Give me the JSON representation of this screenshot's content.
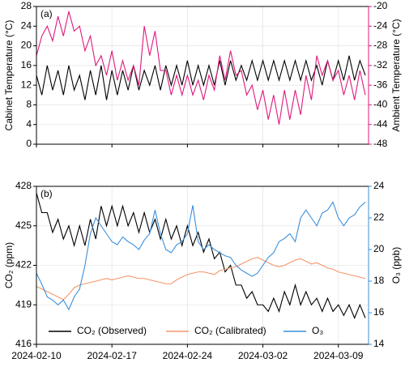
{
  "chart_data": [
    {
      "type": "line",
      "panel_label": "(a)",
      "ylabel": "Cabinet Temperature (°C)",
      "y2label": "Ambient Temperature (°C)",
      "x": [
        0,
        0.5,
        1,
        1.5,
        2,
        2.5,
        3,
        3.5,
        4,
        4.5,
        5,
        5.5,
        6,
        6.5,
        7,
        7.5,
        8,
        8.5,
        9,
        9.5,
        10,
        10.5,
        11,
        11.5,
        12,
        12.5,
        13,
        13.5,
        14,
        14.5,
        15,
        15.5,
        16,
        16.5,
        17,
        17.5,
        18,
        18.5,
        19,
        19.5,
        20,
        20.5,
        21,
        21.5,
        22,
        22.5,
        23,
        23.5,
        24,
        24.5,
        25,
        25.5,
        26,
        26.5,
        27,
        27.5,
        28,
        28.5,
        29,
        29.5,
        30,
        30.5
      ],
      "xlim": [
        0,
        30.8
      ],
      "xticks": [
        0,
        7,
        14,
        21,
        28
      ],
      "ylim": [
        0,
        28
      ],
      "yticks": [
        0,
        4,
        8,
        12,
        16,
        20,
        24,
        28
      ],
      "y2lim": [
        -48,
        -20
      ],
      "y2ticks": [
        -48,
        -44,
        -40,
        -36,
        -32,
        -28,
        -24,
        -20
      ],
      "y2color": "#e0197d",
      "grid": true,
      "series": [
        {
          "name": "Cabinet Temperature",
          "color": "#000000",
          "values": [
            14,
            10,
            16,
            11,
            15,
            10,
            16,
            11,
            14,
            9,
            15,
            10,
            16,
            9,
            15,
            10,
            15,
            11,
            16,
            11,
            15,
            12,
            16,
            11,
            16,
            12,
            16,
            12,
            17,
            12,
            16,
            12,
            16,
            12,
            17,
            12,
            17,
            13,
            16,
            13,
            17,
            13,
            17,
            13,
            17,
            13,
            17,
            13,
            17,
            13,
            17,
            13,
            16,
            12,
            17,
            13,
            17,
            13,
            18,
            13,
            17,
            14
          ]
        },
        {
          "name": "Ambient Temperature",
          "color": "#e0197d",
          "axis": "y2",
          "values": [
            -30,
            -26,
            -24,
            -27,
            -22,
            -26,
            -21,
            -25,
            -24,
            -29,
            -26,
            -32,
            -30,
            -34,
            -29,
            -35,
            -31,
            -35,
            -32,
            -36,
            -24,
            -30,
            -25,
            -33,
            -33,
            -38,
            -34,
            -38,
            -34,
            -38,
            -35,
            -39,
            -34,
            -37,
            -30,
            -35,
            -29,
            -34,
            -33,
            -38,
            -36,
            -41,
            -37,
            -43,
            -38,
            -44,
            -37,
            -43,
            -37,
            -42,
            -34,
            -39,
            -30,
            -34,
            -31,
            -35,
            -33,
            -38,
            -34,
            -39,
            -33,
            -38
          ]
        }
      ]
    },
    {
      "type": "line",
      "panel_label": "(b)",
      "ylabel": "CO₂ (ppm)",
      "y2label": "O₃ (ppb)",
      "x": [
        0,
        0.5,
        1,
        1.5,
        2,
        2.5,
        3,
        3.5,
        4,
        4.5,
        5,
        5.5,
        6,
        6.5,
        7,
        7.5,
        8,
        8.5,
        9,
        9.5,
        10,
        10.5,
        11,
        11.5,
        12,
        12.5,
        13,
        13.5,
        14,
        14.5,
        15,
        15.5,
        16,
        16.5,
        17,
        17.5,
        18,
        18.5,
        19,
        19.5,
        20,
        20.5,
        21,
        21.5,
        22,
        22.5,
        23,
        23.5,
        24,
        24.5,
        25,
        25.5,
        26,
        26.5,
        27,
        27.5,
        28,
        28.5,
        29,
        29.5,
        30,
        30.5
      ],
      "xlim": [
        0,
        30.8
      ],
      "xticks": [
        {
          "value": 0,
          "label": "2024-02-10"
        },
        {
          "value": 7,
          "label": "2024-02-17"
        },
        {
          "value": 14,
          "label": "2024-02-24"
        },
        {
          "value": 21,
          "label": "2024-03-02"
        },
        {
          "value": 28,
          "label": "2024-03-09"
        }
      ],
      "ylim": [
        416,
        428
      ],
      "yticks": [
        416,
        419,
        422,
        425,
        428
      ],
      "y2lim": [
        14,
        24
      ],
      "y2ticks": [
        14,
        16,
        18,
        20,
        22,
        24
      ],
      "y2color": "#3a8fdc",
      "grid": true,
      "legend": "bottom",
      "series": [
        {
          "name": "CO₂ (Observed)",
          "color": "#000000",
          "values": [
            427.5,
            426,
            426,
            424.5,
            425.5,
            424,
            425,
            423.5,
            425,
            423.5,
            425.5,
            424,
            426.5,
            425,
            426.5,
            425,
            426.5,
            425,
            426,
            424.5,
            426,
            424.5,
            425.5,
            424,
            425.5,
            424,
            425,
            423.5,
            425,
            423.5,
            424.5,
            423,
            424,
            422.5,
            423,
            421.5,
            422,
            420.5,
            420.5,
            419.5,
            420,
            419,
            419,
            418.5,
            419.5,
            418.5,
            420,
            419,
            420.5,
            419,
            420,
            419,
            419.5,
            418.5,
            419.5,
            418.5,
            419,
            418.2,
            419,
            418,
            419,
            418
          ]
        },
        {
          "name": "CO₂ (Calibrated)",
          "color": "#f4956a",
          "values": [
            420.4,
            420.2,
            420,
            419.8,
            419.6,
            419.4,
            419.8,
            420.3,
            420.5,
            420.6,
            420.7,
            420.8,
            420.9,
            421,
            420.9,
            421,
            421.1,
            421.2,
            421.1,
            421,
            421,
            420.9,
            420.8,
            420.7,
            420.6,
            420.6,
            420.9,
            421.1,
            421.3,
            421.4,
            421.5,
            421.5,
            421.4,
            421.3,
            421.6,
            421.7,
            421.8,
            421.9,
            422.1,
            422.3,
            422.5,
            422.6,
            422.4,
            422.2,
            422,
            421.9,
            422,
            422.2,
            422.4,
            422.5,
            422.3,
            422.1,
            422.2,
            422,
            421.8,
            421.7,
            421.5,
            421.4,
            421.3,
            421.2,
            421.1,
            421
          ]
        },
        {
          "name": "O₃",
          "color": "#3a8fdc",
          "axis": "y2",
          "values": [
            18.5,
            17.8,
            17,
            16.8,
            16.5,
            16.8,
            16.2,
            17,
            17.5,
            19,
            21,
            22,
            21.5,
            21,
            20.5,
            20.3,
            20.8,
            20.5,
            20.3,
            20,
            20.6,
            21,
            22.5,
            21,
            20,
            19.8,
            20.3,
            20.5,
            21,
            22.8,
            20.5,
            20,
            20.3,
            20,
            19.8,
            19.6,
            19.5,
            19,
            18.7,
            18.5,
            18.3,
            18.5,
            19,
            19.5,
            19.8,
            20.5,
            20.7,
            21,
            20.5,
            22,
            22.5,
            22,
            21.5,
            22.3,
            22.5,
            23,
            22,
            21.5,
            22,
            22.2,
            22.7,
            23
          ]
        }
      ]
    }
  ]
}
